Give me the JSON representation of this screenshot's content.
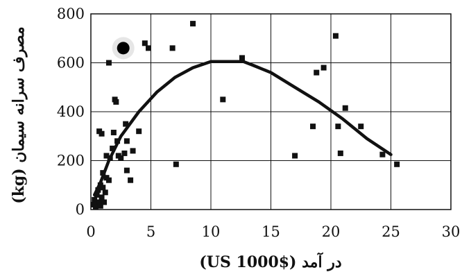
{
  "chart_data": {
    "type": "scatter",
    "xlabel": "در آمد ($1000 US)",
    "ylabel": "مصرف سرانه سیمان (kg)",
    "xlim": [
      0,
      30
    ],
    "ylim": [
      0,
      800
    ],
    "xticks": [
      "0",
      "5",
      "10",
      "15",
      "20",
      "25",
      "30"
    ],
    "yticks": [
      "0",
      "200",
      "400",
      "600",
      "800"
    ],
    "grid": true,
    "series": [
      {
        "marker": "square",
        "points": [
          [
            0.2,
            20
          ],
          [
            0.3,
            40
          ],
          [
            0.4,
            10
          ],
          [
            0.5,
            60
          ],
          [
            0.5,
            20
          ],
          [
            0.6,
            80
          ],
          [
            0.7,
            30
          ],
          [
            0.8,
            100
          ],
          [
            0.8,
            15
          ],
          [
            0.9,
            50
          ],
          [
            1.0,
            150
          ],
          [
            1.0,
            90
          ],
          [
            1.1,
            30
          ],
          [
            1.2,
            70
          ],
          [
            0.7,
            320
          ],
          [
            0.9,
            310
          ],
          [
            1.3,
            220
          ],
          [
            1.3,
            130
          ],
          [
            1.5,
            120
          ],
          [
            1.5,
            600
          ],
          [
            1.6,
            210
          ],
          [
            1.8,
            250
          ],
          [
            1.9,
            315
          ],
          [
            2.0,
            450
          ],
          [
            2.1,
            440
          ],
          [
            2.2,
            280
          ],
          [
            2.3,
            220
          ],
          [
            2.5,
            210
          ],
          [
            2.8,
            230
          ],
          [
            2.9,
            350
          ],
          [
            3.0,
            160
          ],
          [
            3.0,
            280
          ],
          [
            3.3,
            120
          ],
          [
            3.5,
            240
          ],
          [
            4.0,
            320
          ],
          [
            4.5,
            680
          ],
          [
            4.8,
            660
          ],
          [
            6.8,
            660
          ],
          [
            7.1,
            185
          ],
          [
            8.5,
            760
          ],
          [
            11.0,
            450
          ],
          [
            12.6,
            620
          ],
          [
            17.0,
            220
          ],
          [
            18.5,
            340
          ],
          [
            18.8,
            560
          ],
          [
            19.4,
            580
          ],
          [
            20.4,
            710
          ],
          [
            20.6,
            340
          ],
          [
            20.8,
            230
          ],
          [
            21.2,
            415
          ],
          [
            22.5,
            340
          ],
          [
            24.3,
            225
          ],
          [
            25.5,
            185
          ]
        ]
      },
      {
        "type": "line",
        "points": [
          [
            0.3,
            60
          ],
          [
            0.8,
            110
          ],
          [
            1.5,
            200
          ],
          [
            2.5,
            300
          ],
          [
            4,
            400
          ],
          [
            5.5,
            480
          ],
          [
            7,
            540
          ],
          [
            8.5,
            580
          ],
          [
            10,
            605
          ],
          [
            11,
            605
          ],
          [
            12.7,
            605
          ],
          [
            13.5,
            590
          ],
          [
            15,
            560
          ],
          [
            17,
            500
          ],
          [
            19,
            440
          ],
          [
            21,
            370
          ],
          [
            23,
            290
          ],
          [
            25,
            225
          ]
        ]
      }
    ],
    "highlight_point": [
      2.7,
      660
    ]
  }
}
